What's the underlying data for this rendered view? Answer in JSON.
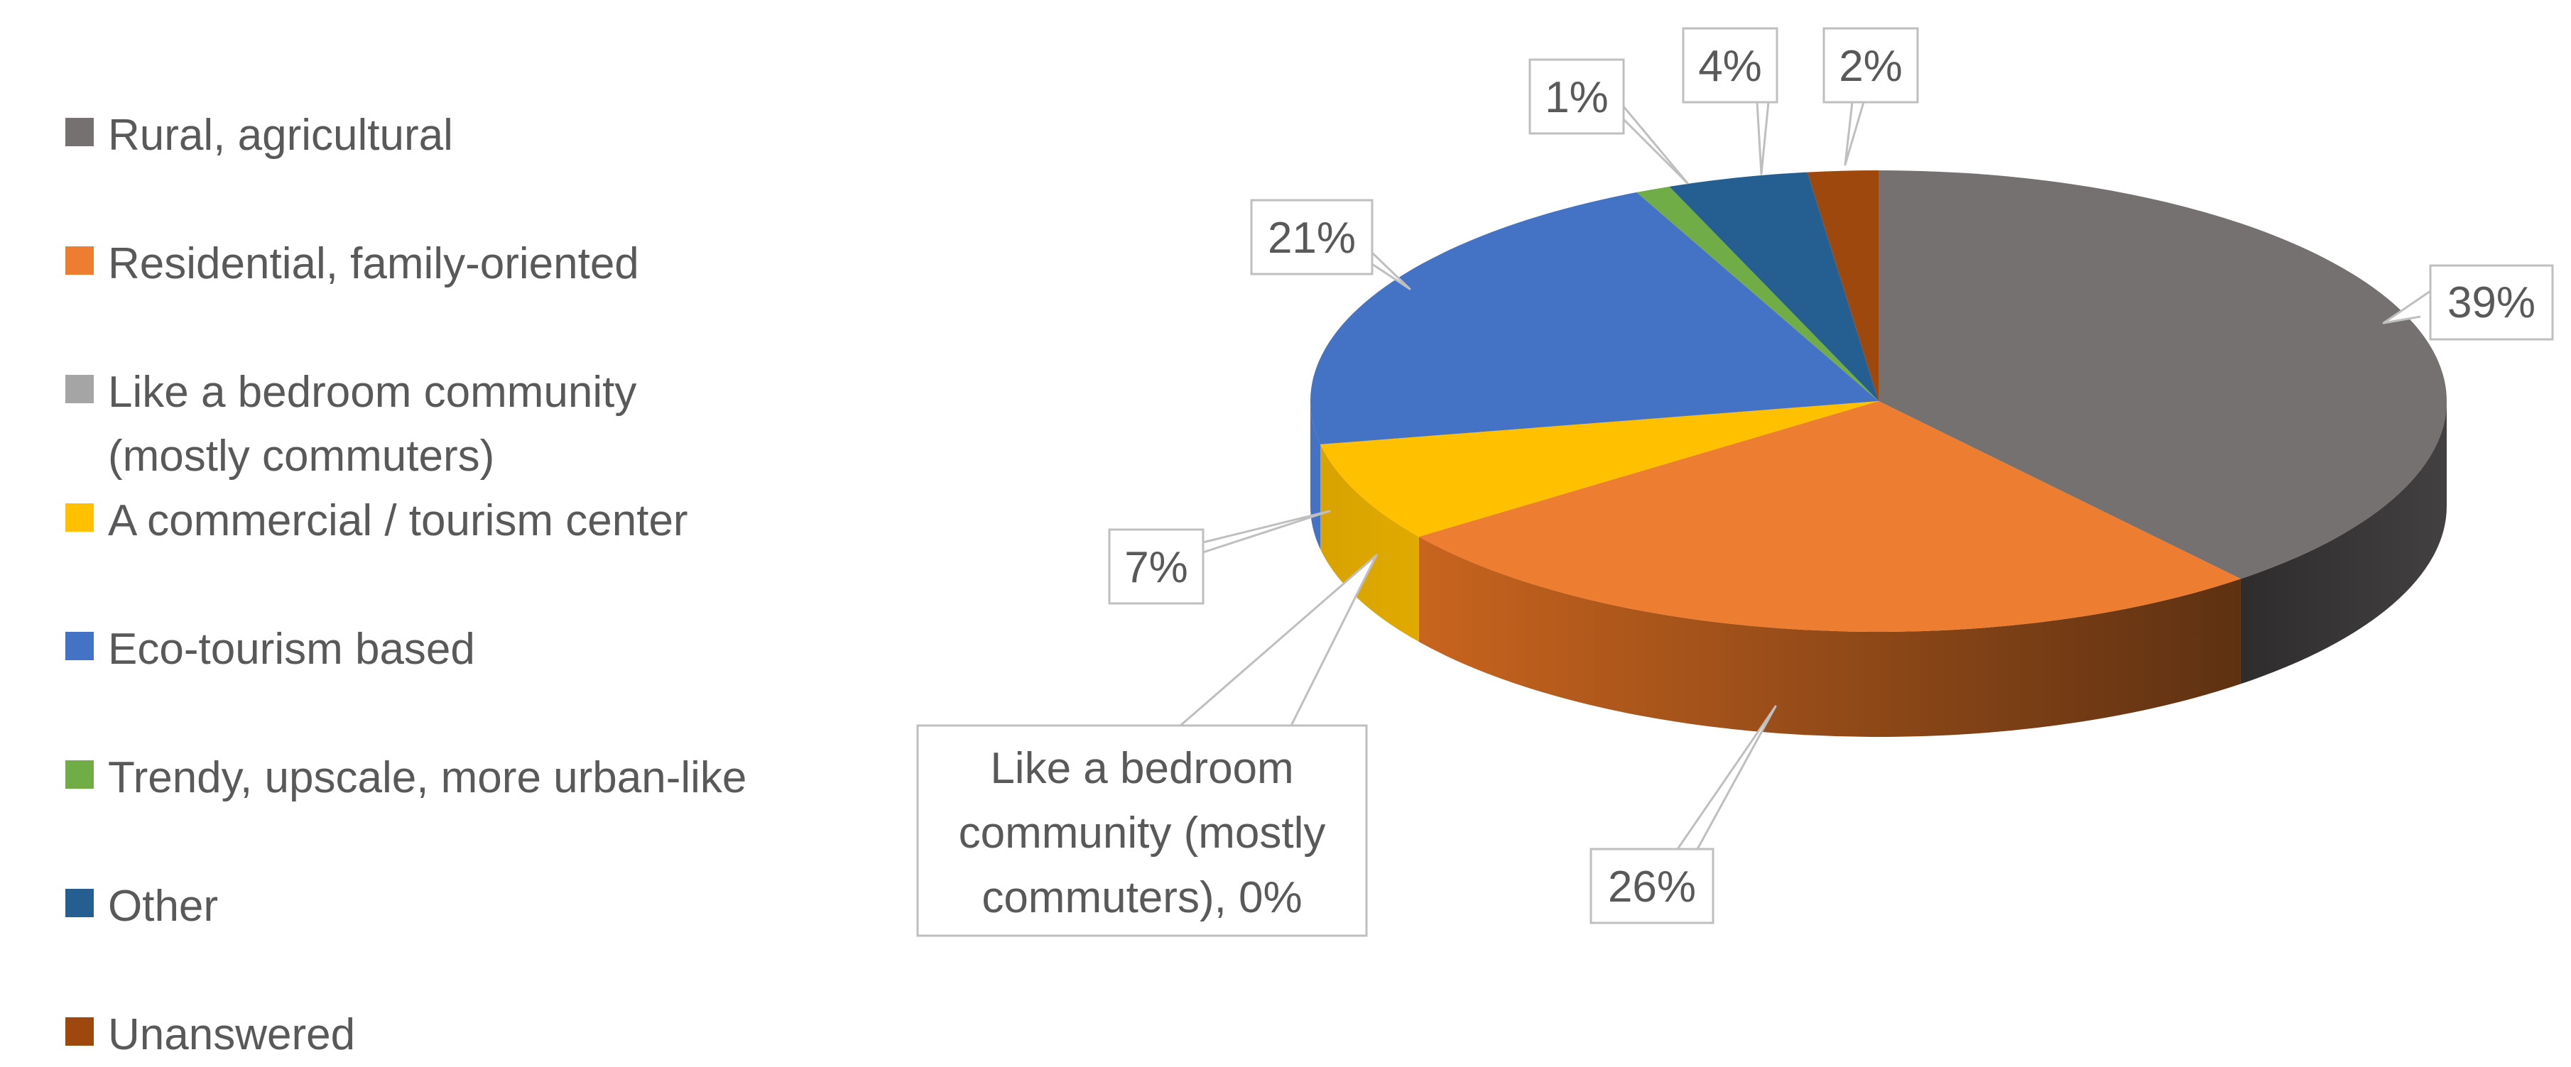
{
  "chart_data": {
    "type": "pie",
    "title": "",
    "legend_position": "left",
    "series": [
      {
        "labels": [
          "Rural, agricultural",
          "Residential, family-oriented",
          "Like a bedroom community (mostly commuters)",
          "A commercial / tourism center",
          "Eco-tourism based",
          "Trendy, upscale, more urban-like",
          "Other",
          "Unanswered"
        ],
        "values": [
          39,
          26,
          0,
          7,
          21,
          1,
          4,
          2
        ],
        "colors": [
          "#767171",
          "#ED7D31",
          "#A5A5A5",
          "#FFC000",
          "#4472C4",
          "#70AD47",
          "#255E91",
          "#9E480E"
        ]
      }
    ],
    "data_labels": [
      "39%",
      "26%",
      "Like a bedroom community (mostly commuters), 0%",
      "7%",
      "21%",
      "1%",
      "4%",
      "2%"
    ]
  },
  "legend": {
    "items": [
      {
        "label": "Rural, agricultural",
        "color": "#767171"
      },
      {
        "label": "Residential, family-oriented",
        "color": "#ED7D31"
      },
      {
        "label": "Like a bedroom community\n(mostly commuters)",
        "color": "#A5A5A5"
      },
      {
        "label": "A commercial / tourism center",
        "color": "#FFC000"
      },
      {
        "label": "Eco-tourism based",
        "color": "#4472C4"
      },
      {
        "label": "Trendy, upscale, more urban-like",
        "color": "#70AD47"
      },
      {
        "label": "Other",
        "color": "#255E91"
      },
      {
        "label": "Unanswered",
        "color": "#9E480E"
      }
    ]
  },
  "labels": {
    "rural": "39%",
    "residential": "26%",
    "bedroom_line1": "Like a bedroom",
    "bedroom_line2": "community (mostly",
    "bedroom_line3": "commuters), 0%",
    "commercial": "7%",
    "eco": "21%",
    "trendy": "1%",
    "other": "4%",
    "unanswered": "2%"
  }
}
